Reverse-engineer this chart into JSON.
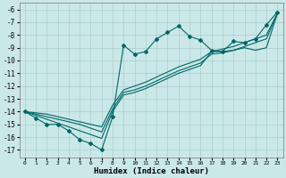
{
  "xlabel": "Humidex (Indice chaleur)",
  "bg_color": "#cbe8e8",
  "grid_color": "#aacccc",
  "line_color": "#006666",
  "xlim": [
    -0.5,
    23.5
  ],
  "ylim": [
    -17.6,
    -5.5
  ],
  "xticks": [
    0,
    1,
    2,
    3,
    4,
    5,
    6,
    7,
    8,
    9,
    10,
    11,
    12,
    13,
    14,
    15,
    16,
    17,
    18,
    19,
    20,
    21,
    22,
    23
  ],
  "yticks": [
    -6,
    -7,
    -8,
    -9,
    -10,
    -11,
    -12,
    -13,
    -14,
    -15,
    -16,
    -17
  ],
  "line1_x": [
    0,
    1,
    2,
    3,
    4,
    5,
    6,
    7,
    8,
    9,
    10,
    11,
    12,
    13,
    14,
    15,
    16,
    17,
    18,
    19,
    20,
    21,
    22,
    23
  ],
  "line1_y": [
    -14.0,
    -14.5,
    -15.0,
    -15.0,
    -15.5,
    -16.2,
    -16.5,
    -17.0,
    -14.4,
    -8.8,
    -9.5,
    -9.3,
    -8.3,
    -7.8,
    -7.3,
    -8.1,
    -8.4,
    -9.2,
    -9.3,
    -8.5,
    -8.6,
    -8.3,
    -7.2,
    -6.2
  ],
  "line2_x": [
    0,
    1,
    2,
    3,
    4,
    5,
    6,
    7,
    8,
    9,
    10,
    11,
    12,
    13,
    14,
    15,
    16,
    17,
    18,
    19,
    20,
    21,
    22,
    23
  ],
  "line2_y": [
    -14.0,
    -14.3,
    -14.6,
    -14.9,
    -15.2,
    -15.5,
    -15.8,
    -16.1,
    -14.0,
    -12.7,
    -12.5,
    -12.2,
    -11.8,
    -11.4,
    -11.0,
    -10.7,
    -10.4,
    -9.3,
    -9.3,
    -9.2,
    -9.0,
    -9.2,
    -9.0,
    -6.3
  ],
  "line3_x": [
    0,
    1,
    2,
    3,
    4,
    5,
    6,
    7,
    8,
    9,
    10,
    11,
    12,
    13,
    14,
    15,
    16,
    17,
    18,
    19,
    20,
    21,
    22,
    23
  ],
  "line3_y": [
    -14.0,
    -14.2,
    -14.4,
    -14.6,
    -14.8,
    -15.0,
    -15.3,
    -15.6,
    -13.8,
    -12.5,
    -12.3,
    -12.0,
    -11.6,
    -11.2,
    -10.8,
    -10.5,
    -10.2,
    -9.5,
    -9.4,
    -9.2,
    -8.9,
    -8.6,
    -8.3,
    -6.3
  ],
  "line4_x": [
    0,
    1,
    2,
    3,
    4,
    5,
    6,
    7,
    8,
    9,
    10,
    11,
    12,
    13,
    14,
    15,
    16,
    17,
    18,
    19,
    20,
    21,
    22,
    23
  ],
  "line4_y": [
    -14.0,
    -14.1,
    -14.2,
    -14.4,
    -14.6,
    -14.8,
    -15.0,
    -15.2,
    -13.5,
    -12.3,
    -12.0,
    -11.7,
    -11.3,
    -10.9,
    -10.5,
    -10.2,
    -9.9,
    -9.3,
    -9.1,
    -8.9,
    -8.6,
    -8.3,
    -8.0,
    -6.3
  ]
}
